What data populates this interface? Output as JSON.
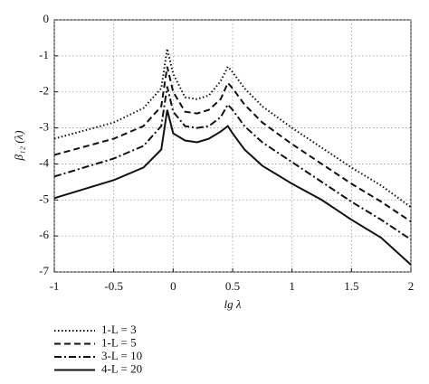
{
  "chart_data": {
    "type": "line",
    "x_label": "lg λ",
    "y_label": "β₁₂ (λ)",
    "x": [
      -1,
      -0.5,
      -0.25,
      -0.1,
      -0.05,
      0,
      0.1,
      0.2,
      0.3,
      0.4,
      0.46,
      0.5,
      0.6,
      0.75,
      1,
      1.25,
      1.5,
      1.75,
      2
    ],
    "series": [
      {
        "name": "1-L = 3",
        "color": "#111111",
        "dash": "1.5,2.5",
        "values": [
          -3.3,
          -2.85,
          -2.45,
          -1.9,
          -0.8,
          -1.5,
          -2.15,
          -2.2,
          -2.1,
          -1.7,
          -1.3,
          -1.45,
          -1.9,
          -2.4,
          -3.0,
          -3.55,
          -4.1,
          -4.6,
          -5.2
        ]
      },
      {
        "name": "1-L = 5",
        "color": "#111111",
        "dash": "7,4",
        "values": [
          -3.75,
          -3.3,
          -2.95,
          -2.4,
          -1.3,
          -2.0,
          -2.55,
          -2.6,
          -2.5,
          -2.2,
          -1.75,
          -1.9,
          -2.35,
          -2.85,
          -3.45,
          -4.0,
          -4.55,
          -5.05,
          -5.6
        ]
      },
      {
        "name": "3-L = 10",
        "color": "#111111",
        "dash": "8,3,2,3",
        "values": [
          -4.35,
          -3.85,
          -3.5,
          -2.95,
          -1.85,
          -2.55,
          -2.95,
          -3.0,
          -2.95,
          -2.7,
          -2.35,
          -2.5,
          -2.95,
          -3.4,
          -3.95,
          -4.5,
          -5.05,
          -5.55,
          -6.1
        ]
      },
      {
        "name": "4-L = 20",
        "color": "#111111",
        "dash": "none",
        "values": [
          -4.95,
          -4.45,
          -4.1,
          -3.6,
          -2.5,
          -3.15,
          -3.35,
          -3.4,
          -3.3,
          -3.1,
          -2.95,
          -3.15,
          -3.6,
          -4.05,
          -4.55,
          -5.0,
          -5.55,
          -6.05,
          -6.8
        ]
      }
    ],
    "xlim": [
      -1,
      2
    ],
    "xticks": [
      -1,
      -0.5,
      0,
      0.5,
      1,
      1.5,
      2
    ],
    "ylim": [
      -7,
      0
    ],
    "yticks": [
      -7,
      -6,
      -5,
      -4,
      -3,
      -2,
      -1,
      0
    ],
    "grid": true,
    "legend": "below"
  }
}
